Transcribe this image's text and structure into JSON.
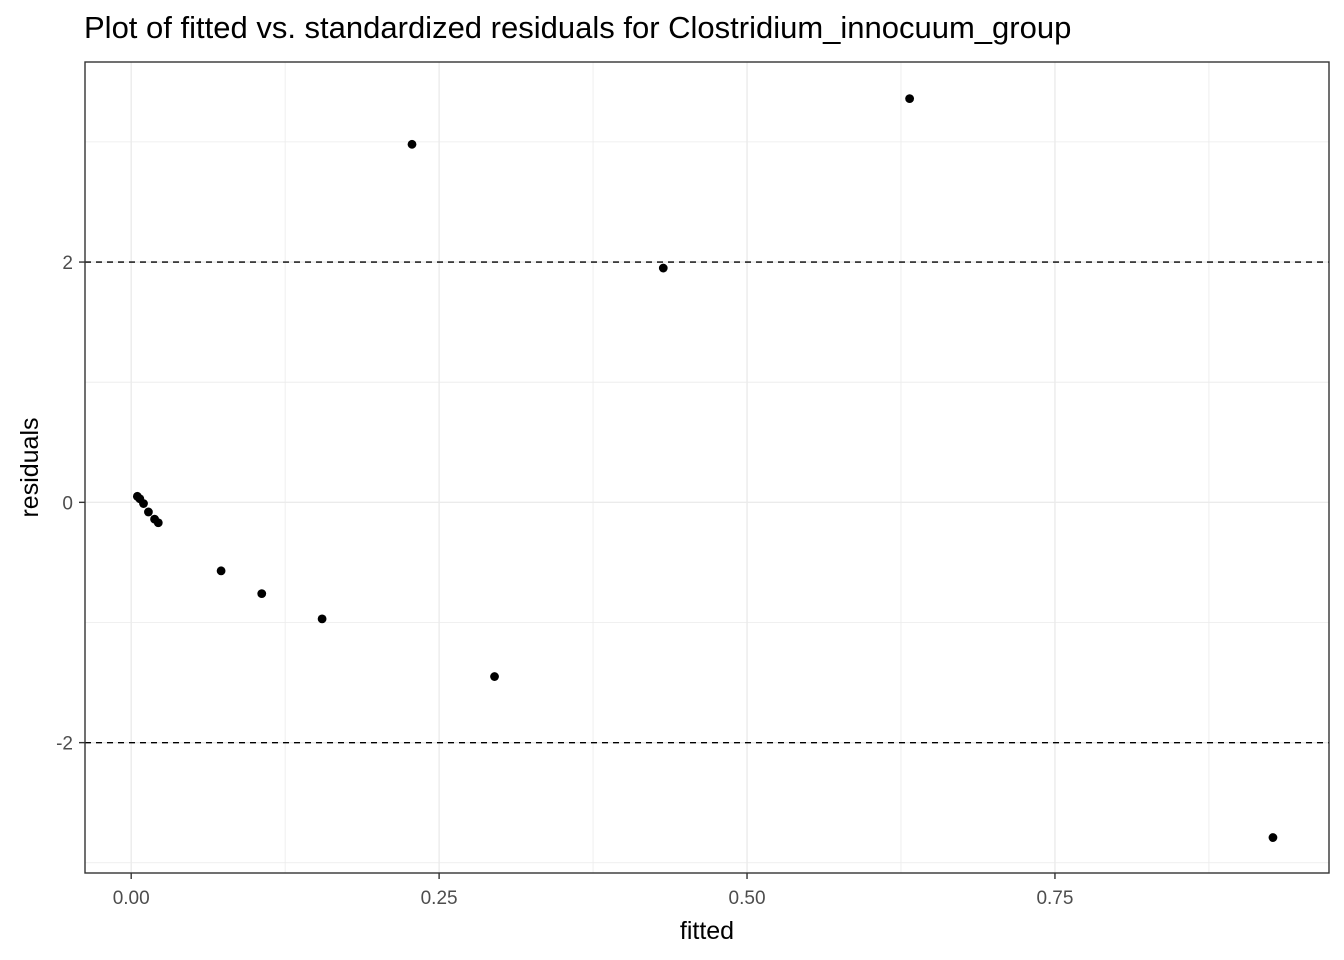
{
  "chart_data": {
    "type": "scatter",
    "title": "Plot of fitted vs. standardized residuals for Clostridium_innocuum_group",
    "xlabel": "fitted",
    "ylabel": "residuals",
    "xlim": [
      -0.0375,
      0.9725
    ],
    "ylim": [
      -3.085,
      3.665
    ],
    "x_ticks": [
      0,
      0.25,
      0.5,
      0.75
    ],
    "x_tick_labels": [
      "0.00",
      "0.25",
      "0.50",
      "0.75"
    ],
    "y_ticks": [
      -2,
      0,
      2
    ],
    "y_tick_labels": [
      "-2",
      "0",
      "2"
    ],
    "grid": true,
    "reference_lines": [
      {
        "axis": "y",
        "value": 2,
        "style": "dashed"
      },
      {
        "axis": "y",
        "value": -2,
        "style": "dashed"
      }
    ],
    "series": [
      {
        "color": "#000000",
        "points": [
          {
            "x": 0.005,
            "y": 0.05
          },
          {
            "x": 0.007,
            "y": 0.03
          },
          {
            "x": 0.01,
            "y": -0.01
          },
          {
            "x": 0.014,
            "y": -0.08
          },
          {
            "x": 0.019,
            "y": -0.14
          },
          {
            "x": 0.022,
            "y": -0.17
          },
          {
            "x": 0.073,
            "y": -0.57
          },
          {
            "x": 0.106,
            "y": -0.76
          },
          {
            "x": 0.155,
            "y": -0.97
          },
          {
            "x": 0.295,
            "y": -1.45
          },
          {
            "x": 0.228,
            "y": 2.98
          },
          {
            "x": 0.432,
            "y": 1.95
          },
          {
            "x": 0.632,
            "y": 3.36
          },
          {
            "x": 0.927,
            "y": -2.79
          }
        ]
      }
    ]
  }
}
